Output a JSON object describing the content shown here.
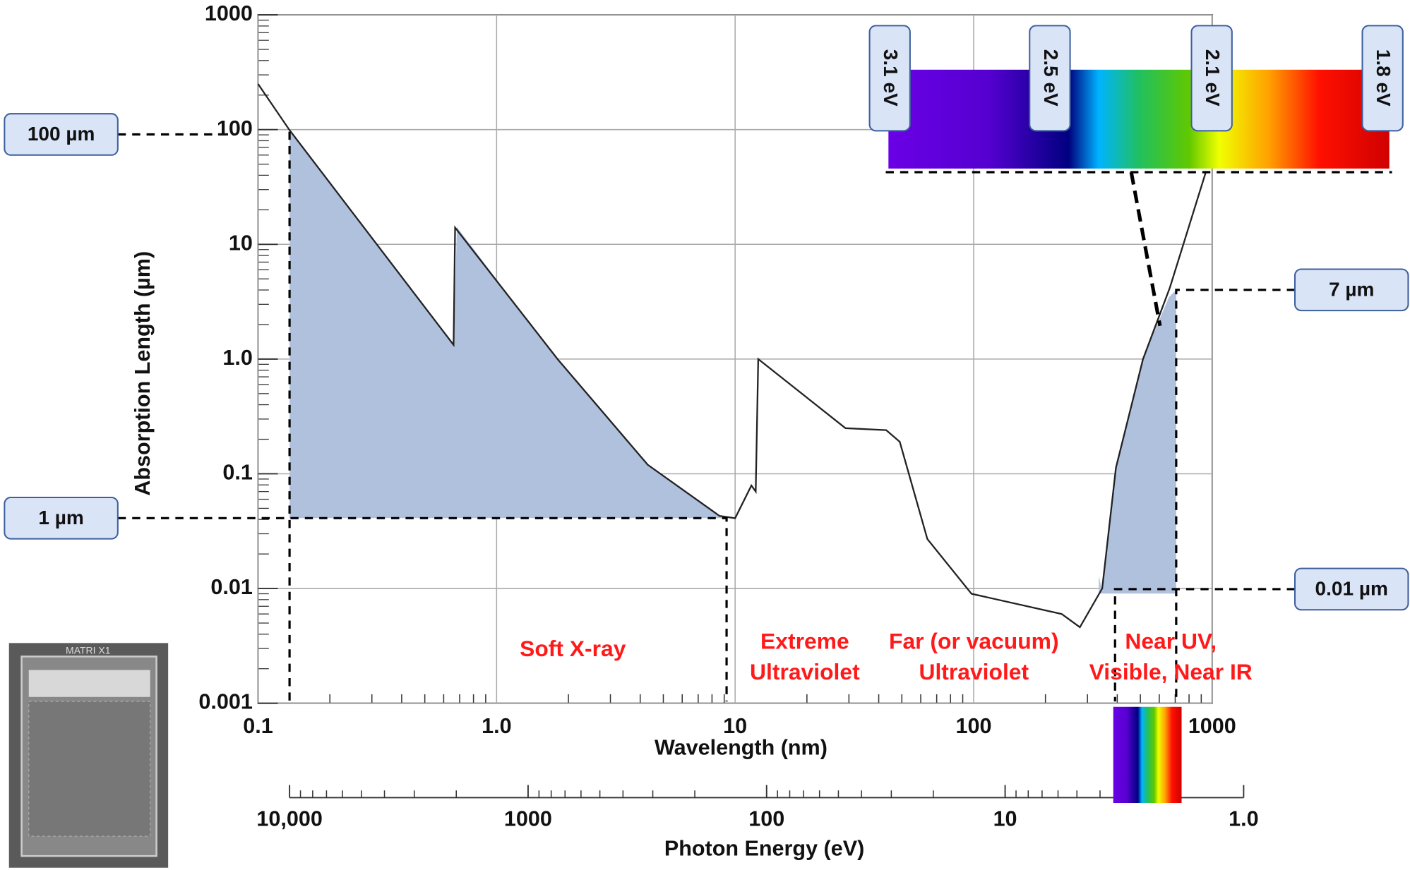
{
  "chart_data": {
    "type": "line",
    "x_label": "Wavelength (nm)",
    "y_label": "Absorption Length (µm)",
    "xscale": "log",
    "yscale": "log",
    "xlim": [
      0.1,
      1000
    ],
    "ylim": [
      0.001,
      1000
    ],
    "xticks": [
      0.1,
      {
        "value": 1,
        "label": "1.0"
      },
      10,
      100,
      1000
    ],
    "yticks": [
      1000,
      100,
      10,
      {
        "value": 1,
        "label": "1.0"
      },
      0.1,
      0.01,
      0.001
    ],
    "grid": true,
    "color": "#222222",
    "x": [
      0.1,
      0.135,
      0.66,
      0.67,
      1.8,
      4.3,
      8.6,
      10,
      11.7,
      12.2,
      12.5,
      29,
      43,
      49,
      64,
      98,
      234,
      279,
      346,
      395,
      513,
      665,
      942
    ],
    "values": [
      250,
      100,
      1.33,
      14,
      1.0,
      0.12,
      0.043,
      0.041,
      0.079,
      0.07,
      1.0,
      0.25,
      0.24,
      0.19,
      0.027,
      0.009,
      0.006,
      0.0046,
      0.01,
      0.113,
      1.0,
      4.2,
      43
    ],
    "x2_label": "Photon Energy (eV)",
    "x2lim": [
      10000,
      1
    ],
    "x2ticks": [
      {
        "value": 10000,
        "label": "10,000"
      },
      1000,
      100,
      10,
      {
        "value": 1,
        "label": "1.0"
      }
    ],
    "region_labels": [
      [
        "Soft X-ray"
      ],
      [
        "Extreme",
        "Ultraviolet"
      ],
      [
        "Far (or vacuum)",
        "Ultraviolet"
      ],
      [
        "Near UV,",
        "Visible, Near IR"
      ]
    ],
    "callouts": [
      "100 µm",
      "1 µm",
      "7 µm",
      "0.01 µm"
    ],
    "spectrum_labels": [
      "3.1 eV",
      "2.5 eV",
      "2.1 eV",
      "1.8 eV"
    ],
    "chip_label": "MATRI X1"
  }
}
